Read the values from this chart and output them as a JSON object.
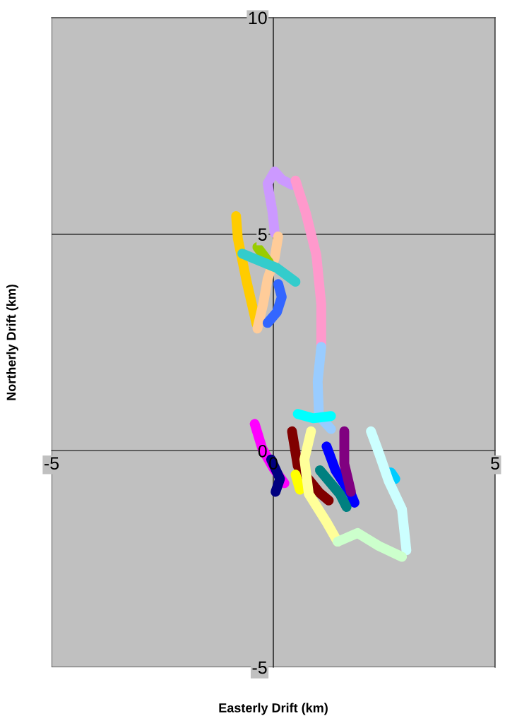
{
  "chart_data": {
    "type": "line",
    "xlabel": "Easterly Drift (km)",
    "ylabel": "Northerly Drift (km)",
    "xlim": [
      -5,
      5
    ],
    "ylim": [
      -5,
      10
    ],
    "xticks": [
      -5,
      0,
      5
    ],
    "yticks": [
      -5,
      0,
      5,
      10
    ],
    "grid": true,
    "line_style": "solid",
    "series": [
      {
        "color": "#cc99ff",
        "x": [
          0.03,
          -0.02,
          -0.13,
          0.03,
          0.19,
          0.42
        ],
        "values": [
          5.03,
          5.52,
          6.17,
          6.45,
          6.26,
          6.14
        ]
      },
      {
        "color": "#ff99cc",
        "x": [
          0.5,
          0.73,
          0.97,
          1.08,
          1.08
        ],
        "values": [
          6.24,
          5.5,
          4.52,
          3.38,
          2.4
        ]
      },
      {
        "color": "#99ccff",
        "x": [
          1.08,
          1.0,
          1.03,
          1.3
        ],
        "values": [
          2.4,
          1.6,
          0.8,
          0.5
        ]
      },
      {
        "color": "#00ffff",
        "x": [
          0.55,
          0.9,
          1.3
        ],
        "values": [
          0.85,
          0.75,
          0.8
        ]
      },
      {
        "color": "#ffcc00",
        "x": [
          -0.84,
          -0.8,
          -0.6,
          -0.38
        ],
        "values": [
          5.42,
          4.9,
          3.9,
          2.93
        ]
      },
      {
        "color": "#ffcc99",
        "x": [
          0.11,
          0.03,
          -0.13,
          -0.23,
          -0.36
        ],
        "values": [
          4.95,
          4.45,
          3.96,
          3.39,
          2.82
        ]
      },
      {
        "color": "#99cc00",
        "x": [
          -0.36,
          -0.1
        ],
        "values": [
          4.7,
          4.35
        ]
      },
      {
        "color": "#33cccc",
        "x": [
          -0.7,
          0.08,
          0.5
        ],
        "values": [
          4.55,
          4.22,
          3.9
        ]
      },
      {
        "color": "#3366ff",
        "x": [
          0.11,
          0.19,
          0.08,
          -0.13
        ],
        "values": [
          3.85,
          3.55,
          3.2,
          2.95
        ]
      },
      {
        "color": "#ff00ff",
        "x": [
          -0.42,
          -0.25,
          0.0,
          0.25
        ],
        "values": [
          0.62,
          0.05,
          -0.4,
          -0.75
        ]
      },
      {
        "color": "#000080",
        "x": [
          -0.05,
          0.15,
          0.05
        ],
        "values": [
          -0.2,
          -0.65,
          -0.95
        ]
      },
      {
        "color": "#800000",
        "x": [
          0.42,
          0.55,
          1.03,
          1.25
        ],
        "values": [
          0.45,
          -0.35,
          -0.96,
          -1.15
        ]
      },
      {
        "color": "#ffff00",
        "x": [
          0.5,
          0.6
        ],
        "values": [
          -0.55,
          -0.9
        ]
      },
      {
        "color": "#ffff99",
        "x": [
          0.85,
          0.7,
          0.8,
          1.2,
          1.45
        ],
        "values": [
          0.45,
          -0.2,
          -1.0,
          -1.65,
          -2.1
        ]
      },
      {
        "color": "#0000ff",
        "x": [
          1.2,
          1.4,
          1.75,
          1.83
        ],
        "values": [
          0.1,
          -0.45,
          -1.0,
          -1.2
        ]
      },
      {
        "color": "#800080",
        "x": [
          1.6,
          1.6,
          1.75
        ],
        "values": [
          0.45,
          -0.3,
          -0.95
        ]
      },
      {
        "color": "#008080",
        "x": [
          1.05,
          1.5,
          1.65
        ],
        "values": [
          -0.45,
          -1.0,
          -1.3
        ]
      },
      {
        "color": "#00ccff",
        "x": [
          2.65,
          2.75
        ],
        "values": [
          -0.5,
          -0.65
        ]
      },
      {
        "color": "#ccffff",
        "x": [
          2.2,
          2.38,
          2.6,
          2.9,
          3.0
        ],
        "values": [
          0.45,
          -0.05,
          -0.7,
          -1.35,
          -2.3
        ]
      },
      {
        "color": "#ccffcc",
        "x": [
          1.45,
          1.9,
          2.38,
          2.9
        ],
        "values": [
          -2.1,
          -1.9,
          -2.2,
          -2.45
        ]
      }
    ]
  }
}
